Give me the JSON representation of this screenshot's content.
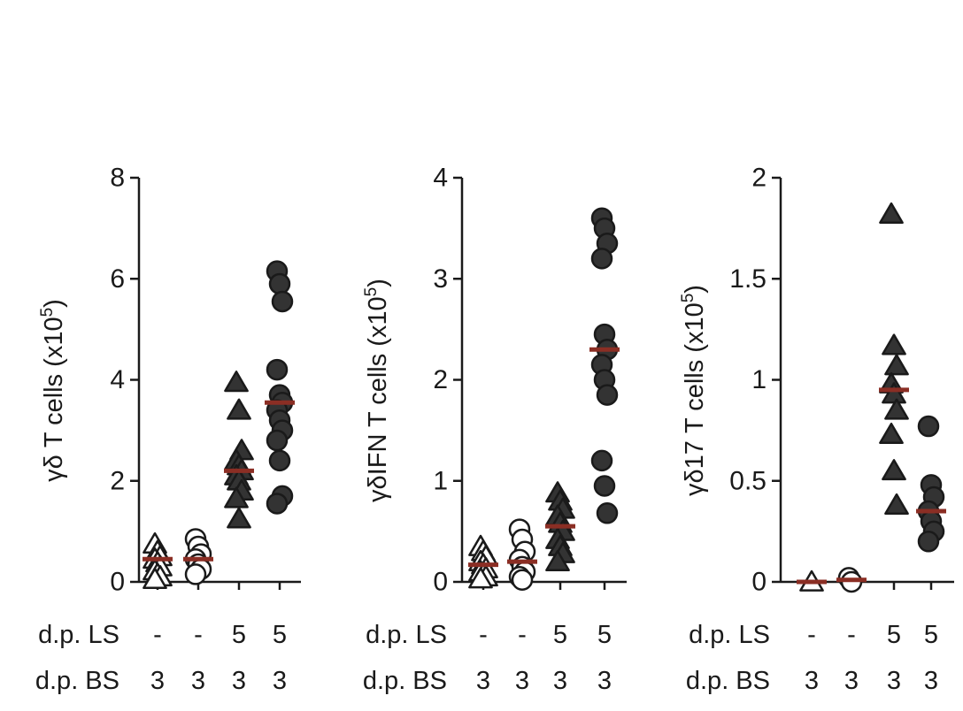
{
  "figure": {
    "row_labels": {
      "ls": "d.p. LS",
      "bs": "d.p. BS"
    },
    "group_ls": [
      "-",
      "-",
      "5",
      "5"
    ],
    "group_bs": [
      "3",
      "3",
      "3",
      "3"
    ],
    "colors": {
      "median": "#8b2e24",
      "filled": "#333333",
      "outline": "#1a1a1a",
      "open": "#ffffff"
    }
  },
  "chart_data": [
    {
      "type": "scatter",
      "ylabel": {
        "prefix": "γδ T cells (x10",
        "sup": "5",
        "suffix": ")"
      },
      "ylim": [
        0,
        8
      ],
      "yticks": [
        0,
        2,
        4,
        6,
        8
      ],
      "ytick_labels": [
        "0",
        "2",
        "4",
        "6",
        "8"
      ],
      "groups": [
        {
          "marker": "triangle",
          "filled": false,
          "median": 0.45,
          "values": [
            0.75,
            0.6,
            0.5,
            0.45,
            0.38,
            0.3,
            0.22,
            0.15,
            0.1,
            0.05
          ]
        },
        {
          "marker": "circle",
          "filled": false,
          "median": 0.45,
          "values": [
            0.85,
            0.7,
            0.55,
            0.45,
            0.35,
            0.25,
            0.15
          ]
        },
        {
          "marker": "triangle",
          "filled": true,
          "median": 2.2,
          "values": [
            3.95,
            3.4,
            2.6,
            2.4,
            2.3,
            2.2,
            2.1,
            2.0,
            1.8,
            1.65,
            1.25
          ]
        },
        {
          "marker": "circle",
          "filled": true,
          "median": 3.55,
          "values": [
            6.15,
            5.9,
            5.55,
            4.2,
            3.7,
            3.55,
            3.4,
            3.2,
            3.0,
            2.8,
            2.4,
            1.7,
            1.55
          ]
        }
      ]
    },
    {
      "type": "scatter",
      "ylabel": {
        "prefix": "γδIFN T cells (x10",
        "sup": "5",
        "suffix": ")"
      },
      "ylim": [
        0,
        4
      ],
      "yticks": [
        0,
        1,
        2,
        3,
        4
      ],
      "ytick_labels": [
        "0",
        "1",
        "2",
        "3",
        "4"
      ],
      "groups": [
        {
          "marker": "triangle",
          "filled": false,
          "median": 0.17,
          "values": [
            0.35,
            0.3,
            0.25,
            0.2,
            0.17,
            0.13,
            0.1,
            0.07,
            0.05,
            0.03
          ]
        },
        {
          "marker": "circle",
          "filled": false,
          "median": 0.2,
          "values": [
            0.52,
            0.42,
            0.3,
            0.22,
            0.15,
            0.1,
            0.05,
            0.02
          ]
        },
        {
          "marker": "triangle",
          "filled": true,
          "median": 0.55,
          "values": [
            0.88,
            0.8,
            0.72,
            0.65,
            0.58,
            0.5,
            0.42,
            0.35,
            0.28,
            0.2
          ]
        },
        {
          "marker": "circle",
          "filled": true,
          "median": 2.3,
          "values": [
            3.6,
            3.5,
            3.35,
            3.2,
            2.45,
            2.3,
            2.15,
            2.0,
            1.85,
            1.2,
            0.95,
            0.68
          ]
        }
      ]
    },
    {
      "type": "scatter",
      "ylabel": {
        "prefix": "γδ17 T cells (x10",
        "sup": "5",
        "suffix": ")"
      },
      "ylim": [
        0,
        2
      ],
      "yticks": [
        0,
        0.5,
        1,
        1.5,
        2
      ],
      "ytick_labels": [
        "0",
        "0.5",
        "1",
        "1.5",
        "2"
      ],
      "groups": [
        {
          "marker": "triangle",
          "filled": false,
          "median": 0.0,
          "values": [
            0.0
          ]
        },
        {
          "marker": "circle",
          "filled": false,
          "median": 0.01,
          "values": [
            0.02,
            0.0
          ]
        },
        {
          "marker": "triangle",
          "filled": true,
          "median": 0.95,
          "values": [
            1.82,
            1.17,
            1.07,
            0.98,
            0.93,
            0.85,
            0.73,
            0.55,
            0.38
          ]
        },
        {
          "marker": "circle",
          "filled": true,
          "median": 0.35,
          "values": [
            0.77,
            0.48,
            0.42,
            0.35,
            0.3,
            0.25,
            0.2
          ]
        }
      ]
    }
  ]
}
